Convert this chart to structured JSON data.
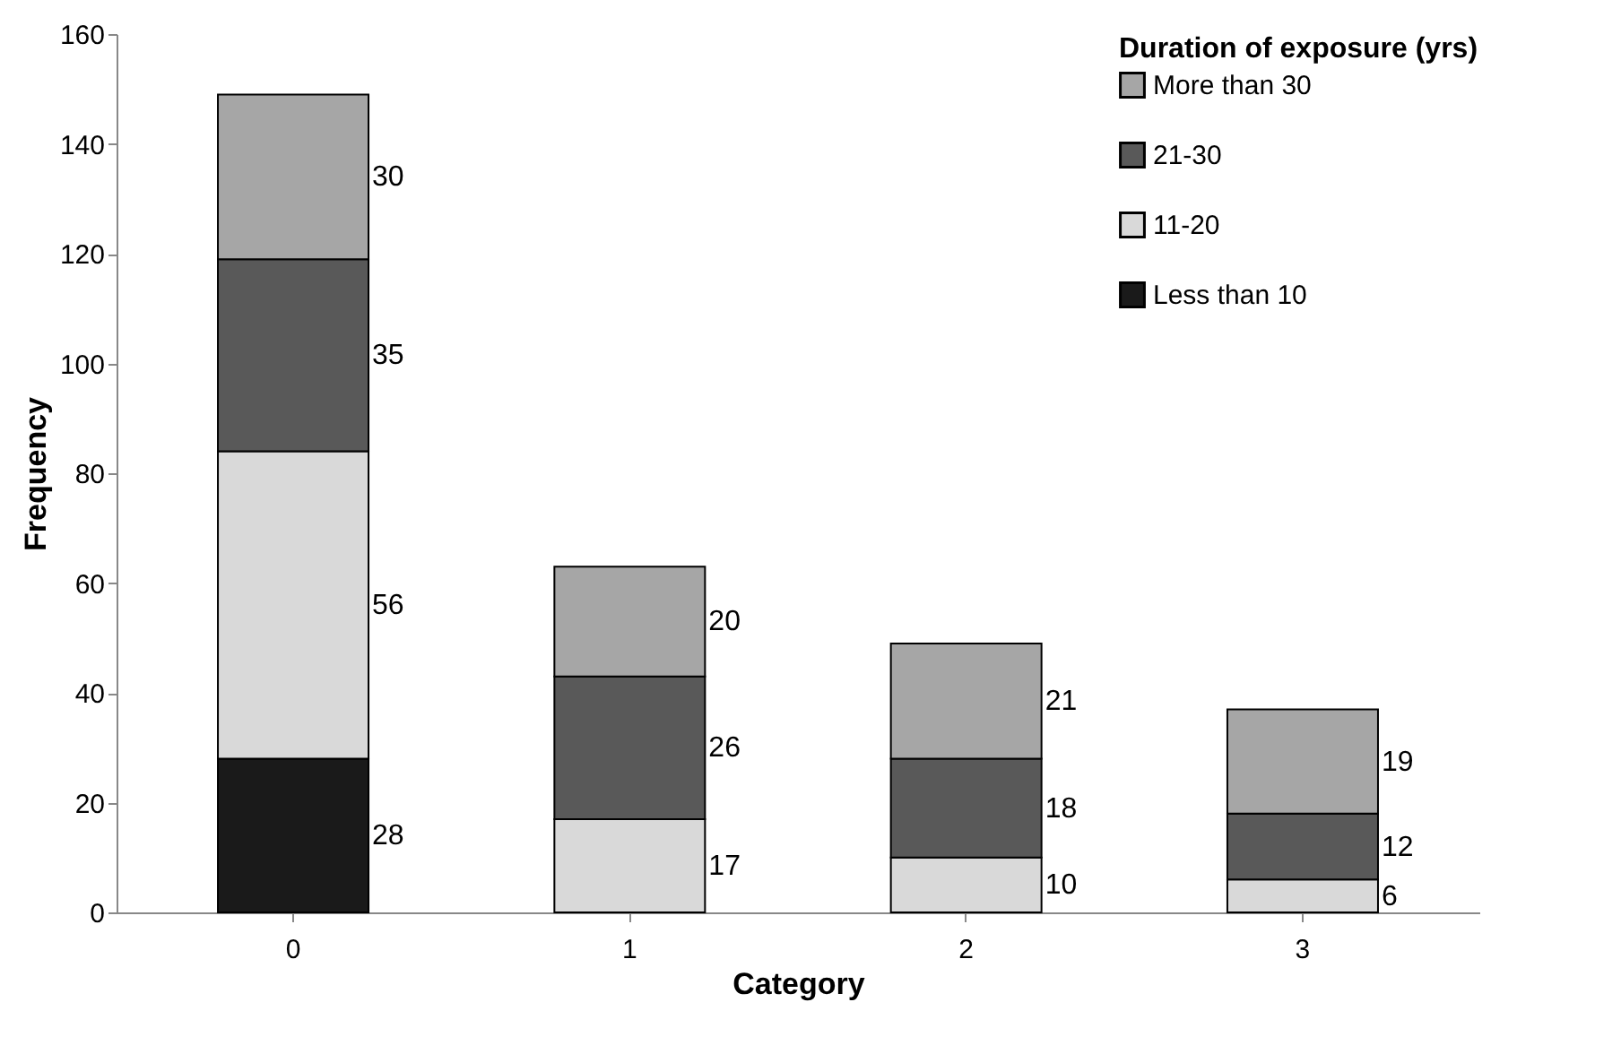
{
  "chart_data": {
    "type": "bar",
    "stacked": true,
    "xlabel": "Category",
    "ylabel": "Frequency",
    "legend_title": "Duration of exposure (yrs)",
    "legend": "top right",
    "data_labels": true,
    "grid": false,
    "categories": [
      "0",
      "1",
      "2",
      "3"
    ],
    "ylim": [
      0,
      160
    ],
    "yticks": [
      0,
      20,
      40,
      60,
      80,
      100,
      120,
      140,
      160
    ],
    "series": [
      {
        "name": "Less than 10",
        "color": "#1a1a1a",
        "values": [
          28,
          null,
          null,
          null
        ]
      },
      {
        "name": "11-20",
        "color": "#d9d9d9",
        "values": [
          56,
          17,
          10,
          6
        ]
      },
      {
        "name": "21-30",
        "color": "#595959",
        "values": [
          35,
          26,
          18,
          12
        ]
      },
      {
        "name": "More than 30",
        "color": "#a6a6a6",
        "values": [
          30,
          20,
          21,
          19
        ]
      }
    ]
  }
}
